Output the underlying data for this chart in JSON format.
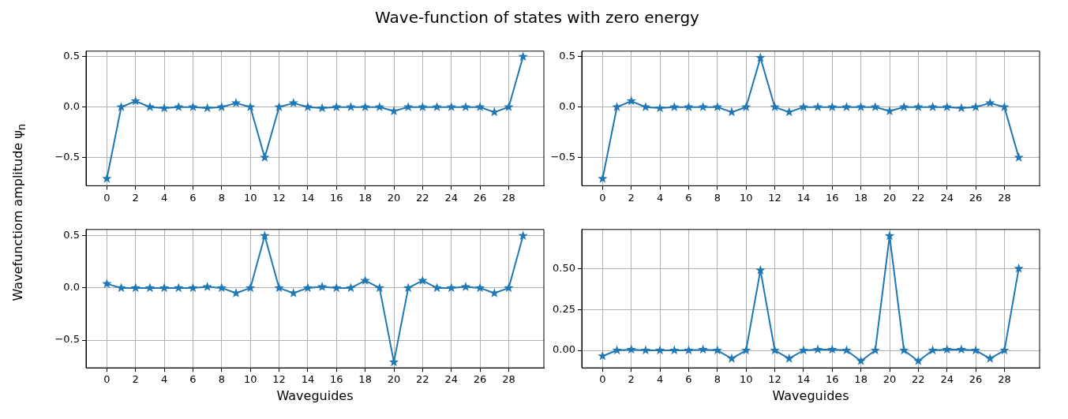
{
  "chart_data": [
    {
      "type": "line",
      "title": "Wave-function of states with zero energy",
      "ylabel": "Wavefunctiom amplitude ψ$_{n}$",
      "marker": "star",
      "grid": true,
      "color": "#1f77b4",
      "x": [
        0,
        1,
        2,
        3,
        4,
        5,
        6,
        7,
        8,
        9,
        10,
        11,
        12,
        13,
        14,
        15,
        16,
        17,
        18,
        19,
        20,
        21,
        22,
        23,
        24,
        25,
        26,
        27,
        28,
        29
      ],
      "xlim": [
        -1.45,
        30.45
      ],
      "xticks": [
        0,
        2,
        4,
        6,
        8,
        10,
        12,
        14,
        16,
        18,
        20,
        22,
        24,
        26,
        28
      ],
      "ylim": [
        -0.78,
        0.555
      ],
      "yticks": [
        {
          "value": -0.5,
          "label": "−0.5"
        },
        {
          "value": 0,
          "label": "0.0"
        },
        {
          "value": 0.5,
          "label": "0.5"
        }
      ],
      "values": [
        -0.71,
        0,
        0.06,
        0,
        -0.01,
        0,
        0,
        -0.01,
        0,
        0.04,
        0,
        -0.5,
        0,
        0.04,
        0,
        -0.01,
        0,
        0,
        0,
        0,
        -0.04,
        0,
        0,
        0,
        0,
        0,
        0,
        -0.05,
        0,
        0.5
      ]
    },
    {
      "type": "line",
      "marker": "star",
      "grid": true,
      "color": "#1f77b4",
      "x": [
        0,
        1,
        2,
        3,
        4,
        5,
        6,
        7,
        8,
        9,
        10,
        11,
        12,
        13,
        14,
        15,
        16,
        17,
        18,
        19,
        20,
        21,
        22,
        23,
        24,
        25,
        26,
        27,
        28,
        29
      ],
      "xlim": [
        -1.45,
        30.45
      ],
      "xticks": [
        0,
        2,
        4,
        6,
        8,
        10,
        12,
        14,
        16,
        18,
        20,
        22,
        24,
        26,
        28
      ],
      "ylim": [
        -0.78,
        0.555
      ],
      "yticks": [
        {
          "value": -0.5,
          "label": "−0.5"
        },
        {
          "value": 0,
          "label": "0.0"
        },
        {
          "value": 0.5,
          "label": "0.5"
        }
      ],
      "values": [
        -0.71,
        0,
        0.06,
        0,
        -0.01,
        0,
        0,
        0,
        0,
        -0.05,
        0,
        0.49,
        0,
        -0.05,
        0,
        0,
        0,
        0,
        0,
        0,
        -0.04,
        0,
        0,
        0,
        0,
        -0.01,
        0,
        0.04,
        0,
        -0.5
      ]
    },
    {
      "type": "line",
      "xlabel": "Waveguides",
      "marker": "star",
      "grid": true,
      "color": "#1f77b4",
      "x": [
        0,
        1,
        2,
        3,
        4,
        5,
        6,
        7,
        8,
        9,
        10,
        11,
        12,
        13,
        14,
        15,
        16,
        17,
        18,
        19,
        20,
        21,
        22,
        23,
        24,
        25,
        26,
        27,
        28,
        29
      ],
      "xlim": [
        -1.45,
        30.45
      ],
      "xticks": [
        0,
        2,
        4,
        6,
        8,
        10,
        12,
        14,
        16,
        18,
        20,
        22,
        24,
        26,
        28
      ],
      "ylim": [
        -0.765,
        0.56
      ],
      "yticks": [
        {
          "value": -0.5,
          "label": "−0.5"
        },
        {
          "value": 0,
          "label": "0.0"
        },
        {
          "value": 0.5,
          "label": "0.5"
        }
      ],
      "values": [
        0.04,
        0,
        0,
        0,
        0,
        0,
        0,
        0.01,
        0,
        -0.05,
        0,
        0.5,
        0,
        -0.05,
        0,
        0.01,
        0,
        0,
        0.07,
        0,
        -0.71,
        0,
        0.07,
        0,
        0,
        0.01,
        0,
        -0.05,
        0,
        0.5
      ]
    },
    {
      "type": "line",
      "xlabel": "Waveguides",
      "marker": "star",
      "grid": true,
      "color": "#1f77b4",
      "x": [
        0,
        1,
        2,
        3,
        4,
        5,
        6,
        7,
        8,
        9,
        10,
        11,
        12,
        13,
        14,
        15,
        16,
        17,
        18,
        19,
        20,
        21,
        22,
        23,
        24,
        25,
        26,
        27,
        28,
        29
      ],
      "xlim": [
        -1.45,
        30.45
      ],
      "xticks": [
        0,
        2,
        4,
        6,
        8,
        10,
        12,
        14,
        16,
        18,
        20,
        22,
        24,
        26,
        28
      ],
      "ylim": [
        -0.107,
        0.739
      ],
      "yticks": [
        {
          "value": 0,
          "label": "0.00"
        },
        {
          "value": 0.25,
          "label": "0.25"
        },
        {
          "value": 0.5,
          "label": "0.50"
        }
      ],
      "values": [
        -0.035,
        0,
        0.005,
        0,
        0,
        0,
        0,
        0.005,
        0,
        -0.05,
        0,
        0.49,
        0,
        -0.05,
        0,
        0.005,
        0.005,
        0,
        -0.065,
        0,
        0.7,
        0,
        -0.065,
        0,
        0.005,
        0.005,
        0,
        -0.05,
        0,
        0.5
      ]
    }
  ]
}
